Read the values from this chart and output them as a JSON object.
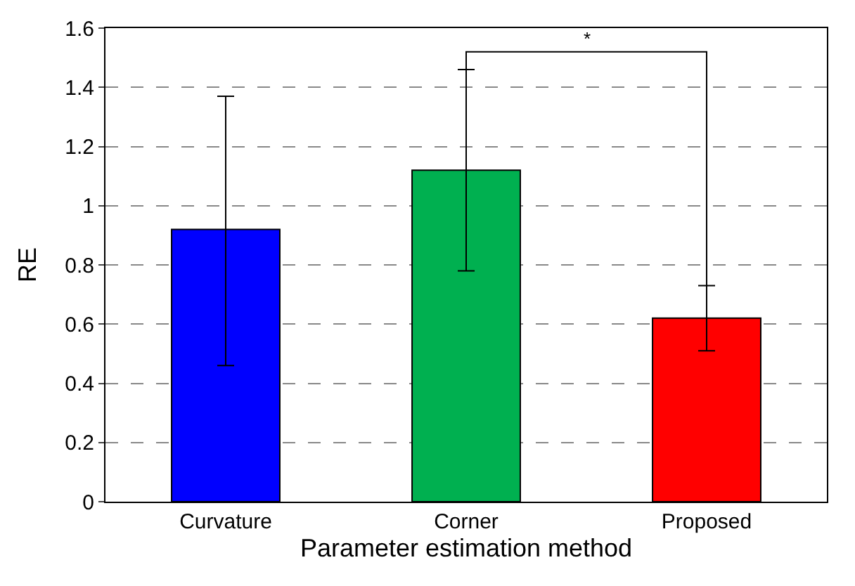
{
  "chart_data": {
    "type": "bar",
    "xlabel": "Parameter estimation method",
    "ylabel": "RE",
    "categories": [
      "Curvature",
      "Corner",
      "Proposed"
    ],
    "values": [
      0.92,
      1.12,
      0.62
    ],
    "colors": [
      "#0000ff",
      "#00b050",
      "#ff0000"
    ],
    "errors": [
      [
        0.46,
        1.37
      ],
      [
        0.78,
        1.46
      ],
      [
        0.51,
        0.73
      ]
    ],
    "annotations": [
      "*"
    ],
    "ylim": [
      0,
      1.6
    ],
    "yticks": [
      0,
      0.2,
      0.4,
      0.6,
      0.8,
      1,
      1.2,
      1.4,
      1.6
    ],
    "grid": "y",
    "legend": false
  }
}
